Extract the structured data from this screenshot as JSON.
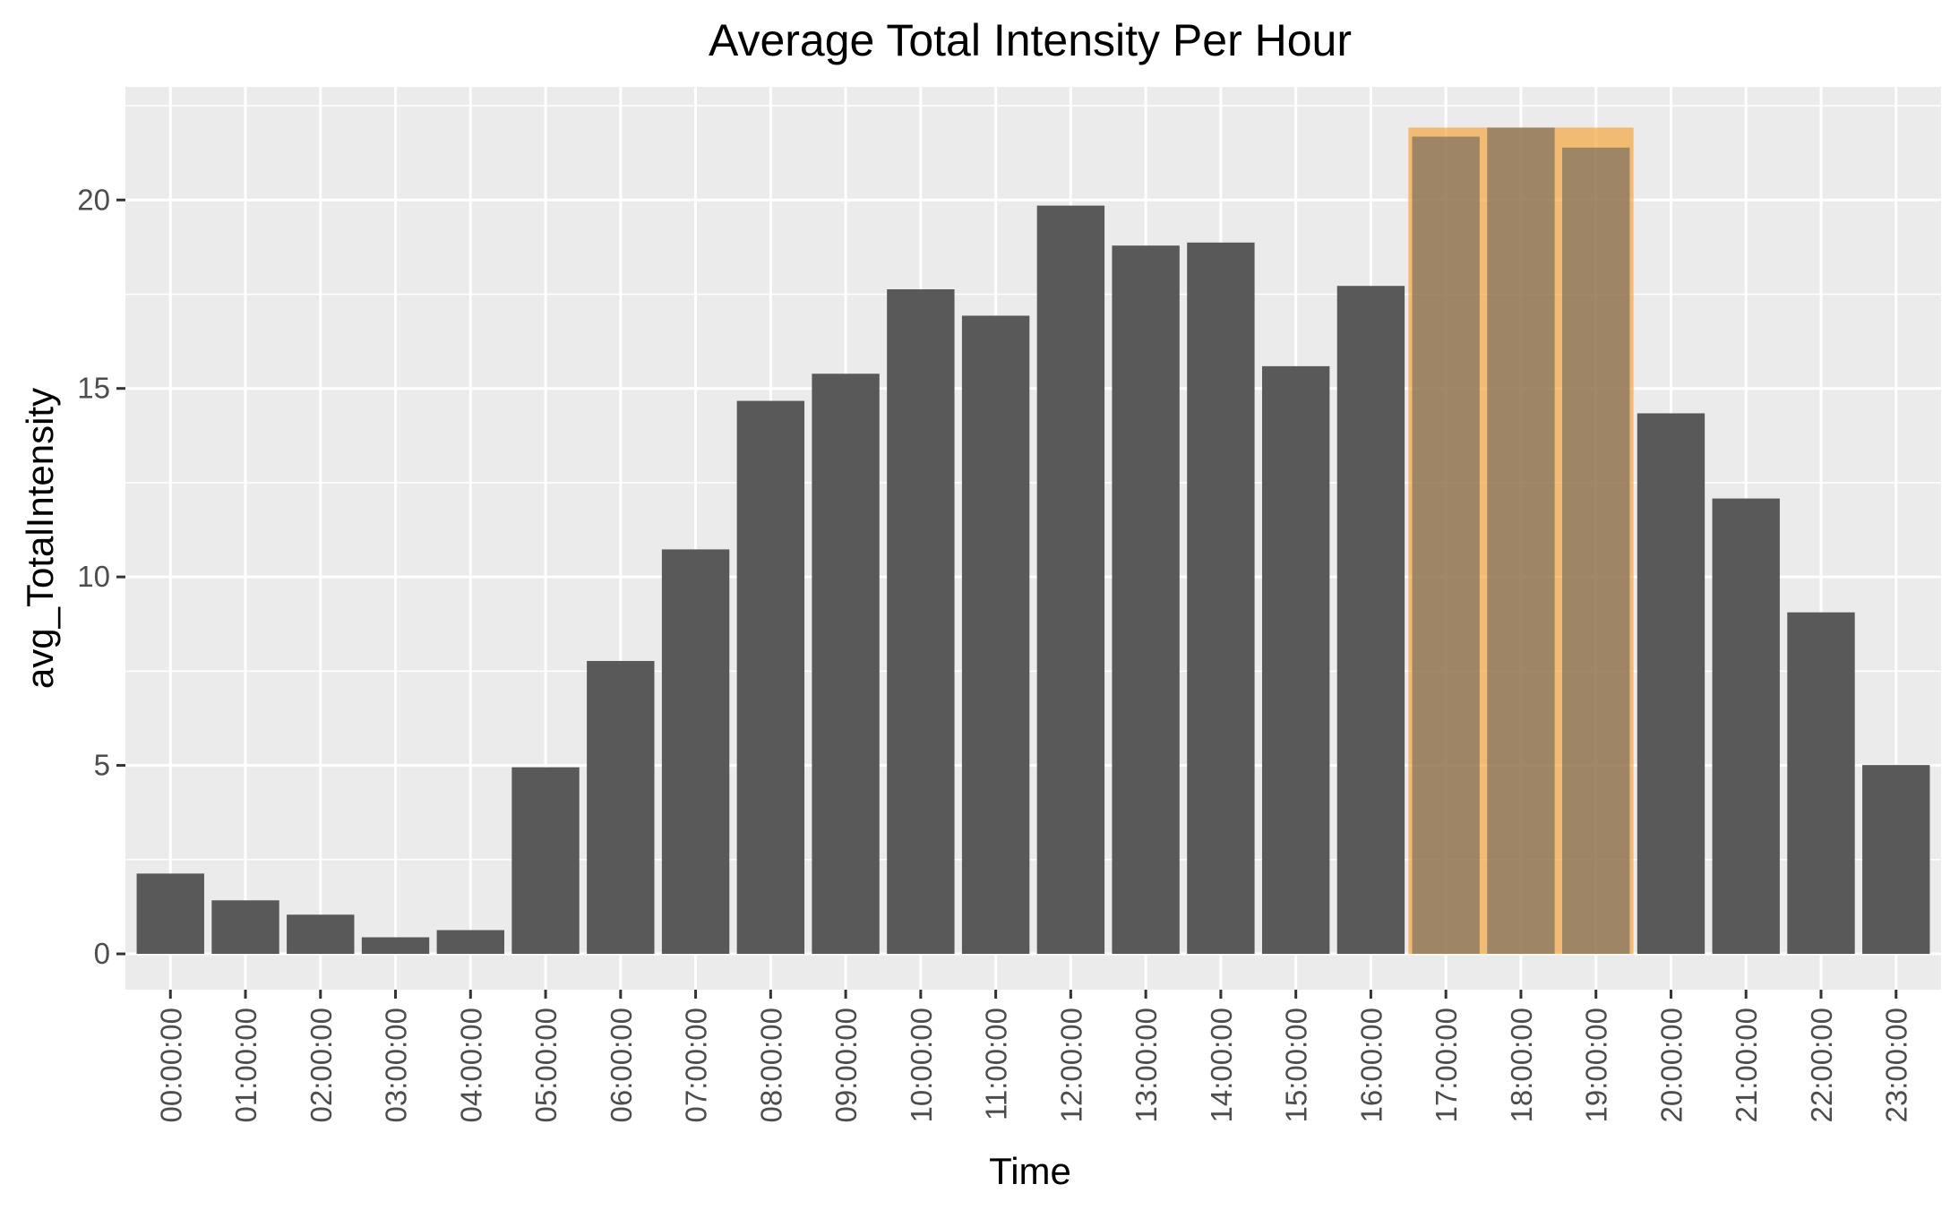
{
  "chart_data": {
    "type": "bar",
    "title": "Average Total Intensity Per Hour",
    "xlabel": "Time",
    "ylabel": "avg_TotalIntensity",
    "categories": [
      "00:00:00",
      "01:00:00",
      "02:00:00",
      "03:00:00",
      "04:00:00",
      "05:00:00",
      "06:00:00",
      "07:00:00",
      "08:00:00",
      "09:00:00",
      "10:00:00",
      "11:00:00",
      "12:00:00",
      "13:00:00",
      "14:00:00",
      "15:00:00",
      "16:00:00",
      "17:00:00",
      "18:00:00",
      "19:00:00",
      "20:00:00",
      "21:00:00",
      "22:00:00",
      "23:00:00"
    ],
    "values": [
      2.13,
      1.42,
      1.04,
      0.44,
      0.63,
      4.95,
      7.77,
      10.73,
      14.67,
      15.39,
      17.63,
      16.93,
      19.85,
      18.79,
      18.87,
      15.59,
      17.72,
      21.68,
      21.92,
      21.39,
      14.34,
      12.08,
      9.06,
      5.01
    ],
    "ylim": [
      -0.95,
      23
    ],
    "yticks": [
      0,
      5,
      10,
      15,
      20
    ],
    "grid": true,
    "highlight": {
      "categories": [
        "17:00:00",
        "18:00:00",
        "19:00:00"
      ],
      "color": "#f5a742",
      "opacity": 0.7
    },
    "colors": {
      "bar": "#595959",
      "panel": "#ebebeb",
      "grid": "#ffffff"
    }
  }
}
